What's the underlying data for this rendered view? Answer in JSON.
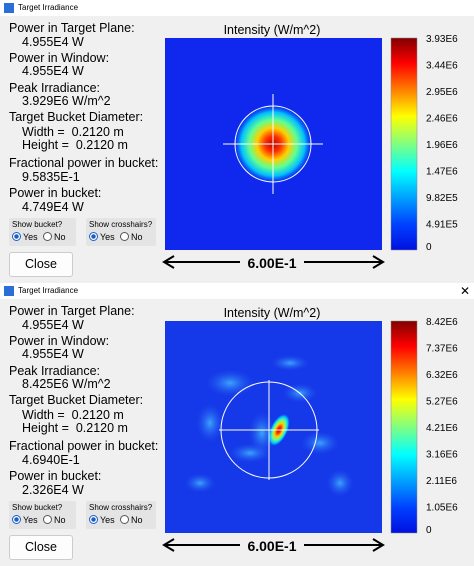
{
  "windows": [
    {
      "title": "Target Irradiance",
      "lines": [
        "Power in Target Plane:",
        "4.955E4 W",
        "Power in Window:",
        "4.955E4 W",
        "Peak Irradiance:",
        "3.929E6 W/m^2",
        "Target Bucket Diameter:",
        "Width =  0.2120 m",
        "Height =  0.2120 m",
        "Fractional power in bucket:",
        "9.5835E-1",
        "Power in bucket:",
        "4.749E4 W"
      ],
      "show_bucket": {
        "label": "Show bucket?",
        "yes": "Yes",
        "no": "No"
      },
      "show_crosshairs": {
        "label": "Show crosshairs?",
        "yes": "Yes",
        "no": "No"
      },
      "close": "Close",
      "plot": {
        "title": "Intensity (W/m^2)",
        "colorbar_labels": [
          "3.93E6",
          "3.44E6",
          "2.95E6",
          "2.46E6",
          "1.96E6",
          "1.47E6",
          "9.82E5",
          "4.91E5",
          "0"
        ],
        "scale": "6.00E-1"
      }
    },
    {
      "title": "Target Irradiance",
      "lines": [
        "Power in Target Plane:",
        "4.955E4 W",
        "Power in Window:",
        "4.955E4 W",
        "Peak Irradiance:",
        "8.425E6 W/m^2",
        "Target Bucket Diameter:",
        "Width =  0.2120 m",
        "Height =  0.2120 m",
        "Fractional power in bucket:",
        "4.6940E-1",
        "Power in bucket:",
        "2.326E4 W"
      ],
      "show_bucket": {
        "label": "Show bucket?",
        "yes": "Yes",
        "no": "No"
      },
      "show_crosshairs": {
        "label": "Show crosshairs?",
        "yes": "Yes",
        "no": "No"
      },
      "close": "Close",
      "plot": {
        "title": "Intensity (W/m^2)",
        "colorbar_labels": [
          "8.42E6",
          "7.37E6",
          "6.32E6",
          "5.27E6",
          "4.21E6",
          "3.16E6",
          "2.11E6",
          "1.05E6",
          "0"
        ],
        "scale": "6.00E-1"
      }
    }
  ]
}
